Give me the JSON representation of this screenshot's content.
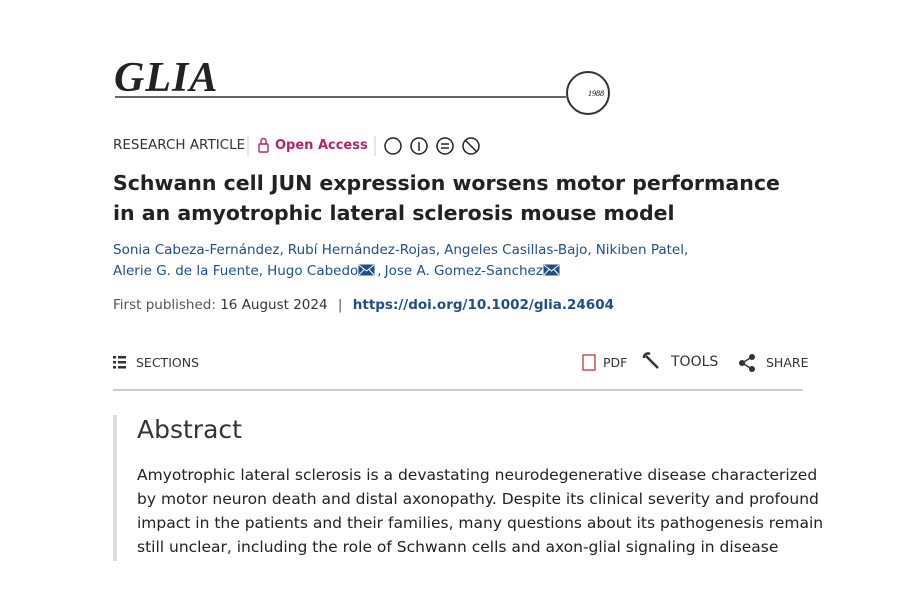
{
  "journal": {
    "name": "GLIA",
    "year": "1988"
  },
  "article": {
    "type": "RESEARCH ARTICLE",
    "access": "Open Access",
    "title": "Schwann cell JUN expression worsens motor performance in an amyotrophic lateral sclerosis mouse model",
    "authors": [
      [
        "Sonia Cabeza-Fernández,",
        "Rubí Hernández-Rojas,",
        "Angeles Casillas-Bajo,",
        "Nikiben Patel,"
      ],
      [
        "Alerie G. de la Fuente,",
        "Hugo Cabedo",
        ",",
        "Jose A. Gomez-Sanchez"
      ]
    ],
    "published_label": "First published:",
    "published_date": "16 August 2024",
    "separator": "|",
    "doi": "https://doi.org/10.1002/glia.24604"
  },
  "toolbar": {
    "sections": "SECTIONS",
    "pdf": "PDF",
    "tools": "TOOLS",
    "share": "SHARE"
  },
  "abstract": {
    "heading": "Abstract",
    "lines": [
      "Amyotrophic lateral sclerosis is a devastating neurodegenerative disease characterized",
      "by motor neuron death and distal axonopathy. Despite its clinical severity and profound",
      "impact in the patients and their families, many questions about its pathogenesis remain",
      "still unclear, including the role of Schwann cells and axon-glial signaling in disease"
    ]
  }
}
